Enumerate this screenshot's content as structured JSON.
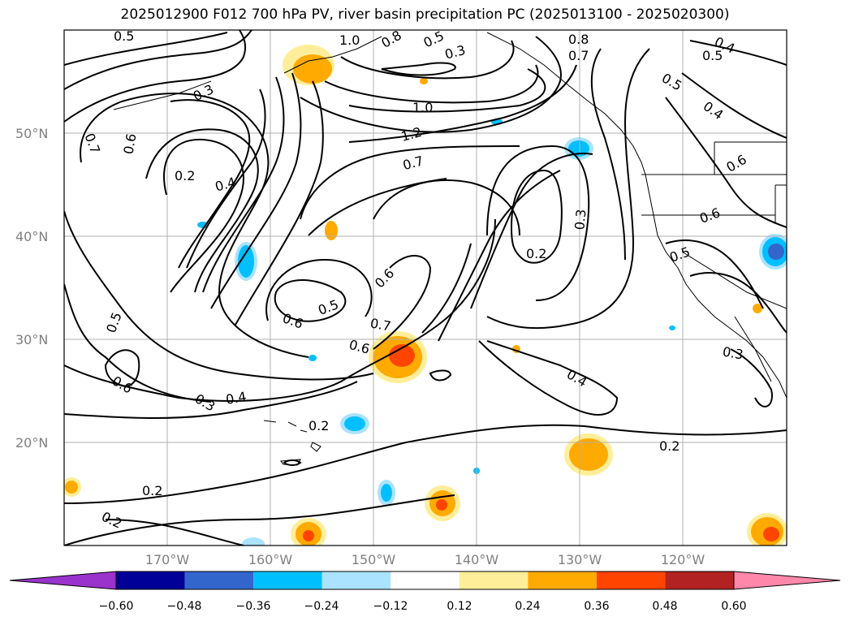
{
  "title": "2025012900 F012 700 hPa PV, river basin precipitation PC (2025013100 - 2025020300)",
  "map": {
    "lon_range": [
      -180,
      -110
    ],
    "lat_range": [
      10,
      60
    ],
    "lon_ticks": [
      "170°W",
      "160°W",
      "150°W",
      "140°W",
      "130°W",
      "120°W"
    ],
    "lat_ticks": [
      "20°N",
      "30°N",
      "40°N",
      "50°N"
    ],
    "gridlines": true
  },
  "contour_labels": [
    "0.5",
    "0.7",
    "0.6",
    "0.3",
    "0.2",
    "0.4",
    "1.0",
    "0.8",
    "0.5",
    "0.3",
    "1.0",
    "1.2",
    "0.7",
    "0.8",
    "0.7",
    "0.5",
    "0.4",
    "0.5",
    "0.4",
    "0.6",
    "0.6",
    "0.3",
    "0.2",
    "0.6",
    "0.5",
    "0.6",
    "0.7",
    "0.6",
    "0.5",
    "0.6",
    "0.3",
    "0.4",
    "0.2",
    "0.2",
    "0.2",
    "0.4",
    "0.2",
    "0.5",
    "0.3"
  ],
  "colorbar": {
    "ticks": [
      "−0.60",
      "−0.48",
      "−0.36",
      "−0.24",
      "−0.12",
      "0.12",
      "0.24",
      "0.36",
      "0.48",
      "0.60"
    ],
    "colors": [
      "#9933cc",
      "#000099",
      "#3366cc",
      "#00bfff",
      "#aae3ff",
      "#ffffff",
      "#ffee99",
      "#ffaa00",
      "#ff4400",
      "#b22222",
      "#ff88aa"
    ]
  }
}
